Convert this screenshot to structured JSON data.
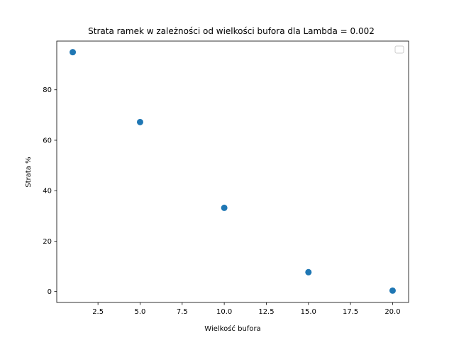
{
  "chart_data": {
    "type": "scatter",
    "title": "Strata ramek w zależności od wielkości bufora dla Lambda = 0.002",
    "xlabel": "Wielkość bufora",
    "ylabel": "Strata %",
    "xlim": [
      0.05,
      20.95
    ],
    "ylim": [
      -4.3,
      99.3
    ],
    "xticks": [
      2.5,
      5.0,
      7.5,
      10.0,
      12.5,
      15.0,
      17.5,
      20.0
    ],
    "xtick_labels": [
      "2.5",
      "5.0",
      "7.5",
      "10.0",
      "12.5",
      "15.0",
      "17.5",
      "20.0"
    ],
    "yticks": [
      0,
      20,
      40,
      60,
      80
    ],
    "ytick_labels": [
      "0",
      "20",
      "40",
      "60",
      "80"
    ],
    "grid": false,
    "legend": "top-right (empty)",
    "color": "#1f77b4",
    "x": [
      1,
      5,
      10,
      15,
      20
    ],
    "y": [
      94.9,
      67.2,
      33.2,
      7.7,
      0.4
    ]
  }
}
